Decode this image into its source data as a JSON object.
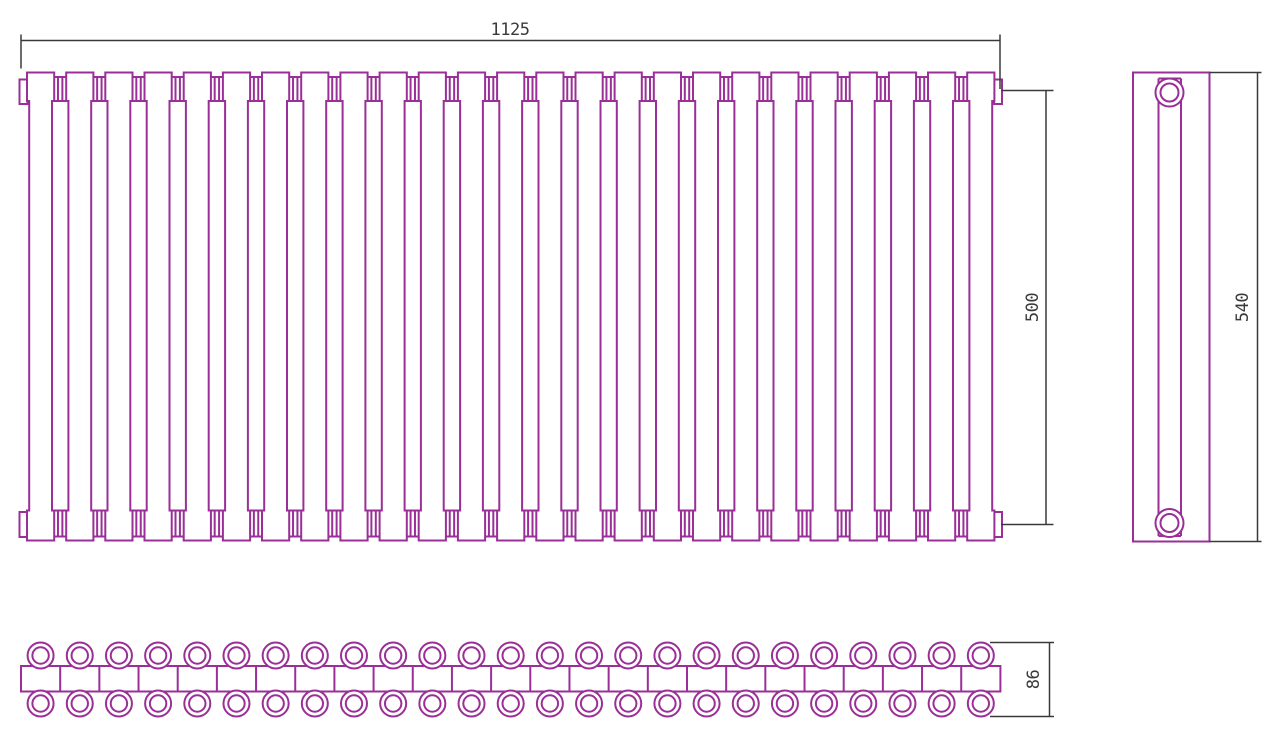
{
  "drawing": {
    "background": "#ffffff",
    "outline_color": "#992f97",
    "dimension_color": "#3a3a3a",
    "front_view": {
      "tube_count": 25,
      "joint_count": 24,
      "connection_boss_count": 4
    },
    "side_view": {
      "coupling_count": 2
    },
    "top_view": {
      "tube_columns": 25,
      "tube_rows": 2
    },
    "dimensions": {
      "width": {
        "label": "1125"
      },
      "height": {
        "label": "500"
      },
      "side_height": {
        "label": "540"
      },
      "depth": {
        "label": "86"
      }
    }
  }
}
